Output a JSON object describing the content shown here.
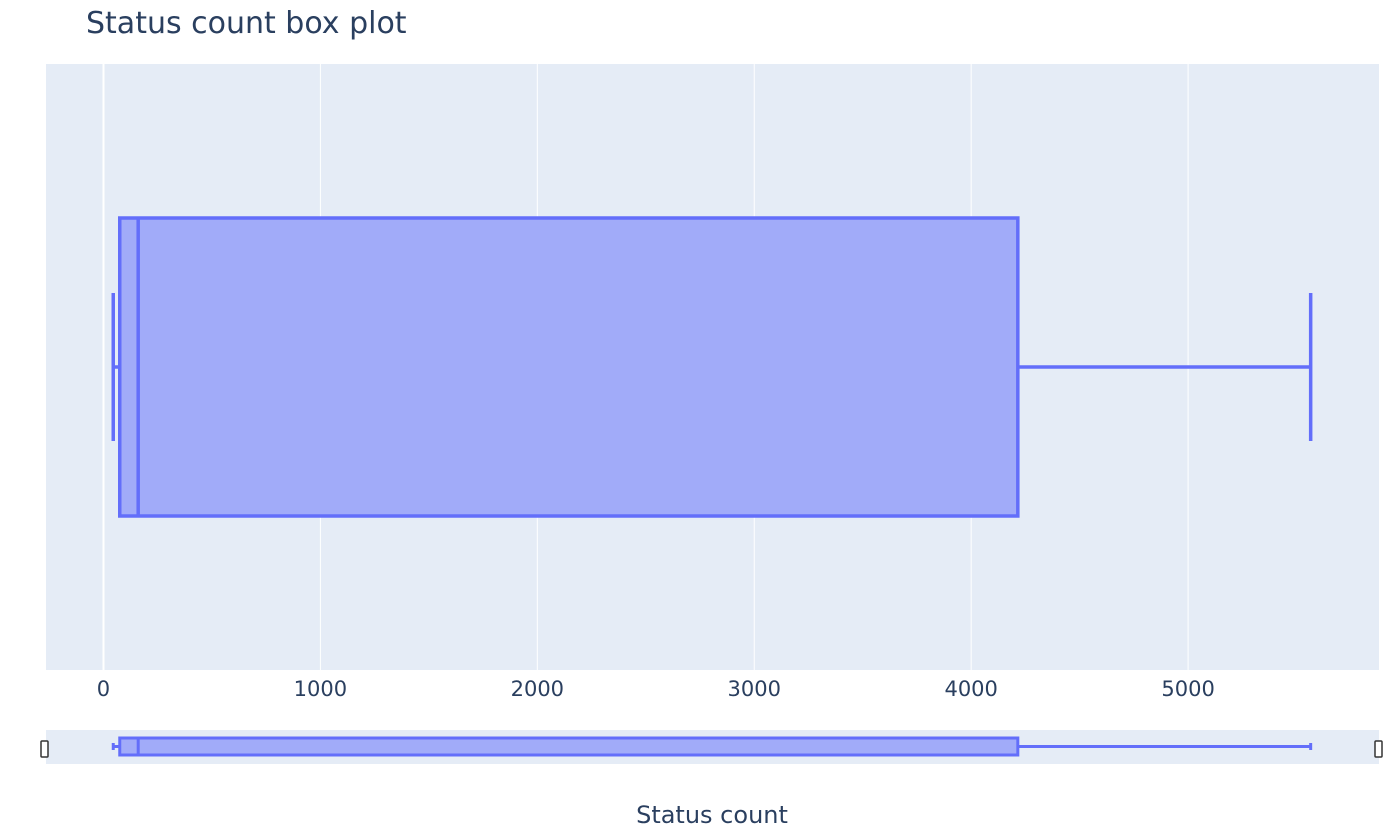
{
  "chart_data": {
    "type": "box",
    "title": "Status count box plot",
    "xlabel": "Status count",
    "orientation": "horizontal",
    "xlim": [
      -265,
      5880
    ],
    "xticks": [
      0,
      1000,
      2000,
      3000,
      4000,
      5000
    ],
    "xtick_labels": [
      "0",
      "1000",
      "2000",
      "3000",
      "4000",
      "5000"
    ],
    "grid": true,
    "rangeslider": true,
    "box": {
      "min": 45,
      "q1": 75,
      "median": 160,
      "q3": 4215,
      "max": 5565
    },
    "colors": {
      "box_fill": "#a1abf9",
      "box_line": "#636efa",
      "plot_bg": "#e5ecf6",
      "grid": "#ffffff",
      "text": "#2a3f5f"
    }
  }
}
